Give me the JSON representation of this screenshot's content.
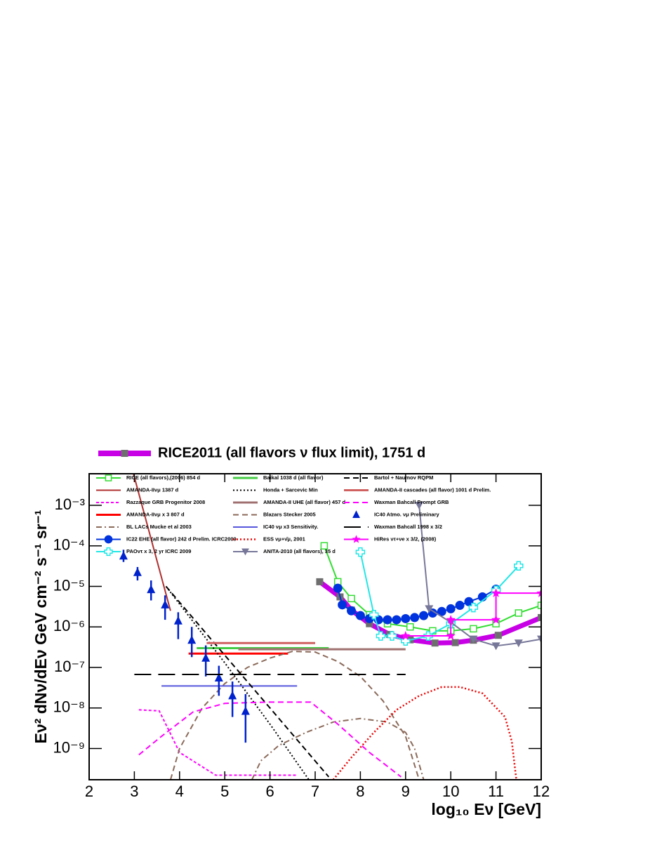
{
  "chart_data": {
    "type": "line",
    "yscale": "log",
    "xlabel": "log₁₀ Eν [GeV]",
    "ylabel": "Eν² dNν/dEν GeV cm⁻² s⁻¹ sr⁻¹",
    "xlim": [
      2,
      12
    ],
    "xticks": [
      2,
      3,
      4,
      5,
      6,
      7,
      8,
      9,
      10,
      11,
      12
    ],
    "ylim": [
      1.7e-10,
      0.006
    ],
    "yticks": [
      {
        "value": 1e-09,
        "label": "10⁻⁹"
      },
      {
        "value": 1e-08,
        "label": "10⁻⁸"
      },
      {
        "value": 1e-07,
        "label": "10⁻⁷"
      },
      {
        "value": 1e-06,
        "label": "10⁻⁶"
      },
      {
        "value": 1e-05,
        "label": "10⁻⁵"
      },
      {
        "value": 0.0001,
        "label": "10⁻⁴"
      },
      {
        "value": 0.001,
        "label": "10⁻³"
      }
    ],
    "series": [
      {
        "name": "RICE2011 (all flavors ν flux limit), 1751 d",
        "color": "#c800e6",
        "dash": "solid",
        "width": 7,
        "marker": "square",
        "marker_color": "#6e6e6e",
        "x": [
          7.1,
          7.55,
          7.8,
          8.2,
          8.65,
          9.1,
          9.65,
          10.1,
          10.5,
          11.05,
          12.0
        ],
        "values": [
          1.3e-05,
          5.5e-06,
          2.6e-06,
          1.2e-06,
          6.5e-07,
          4.8e-07,
          4e-07,
          4.1e-07,
          4.7e-07,
          6.2e-07,
          1.7e-06
        ]
      },
      {
        "name": "RICE (all flavors),(2006) 854 d",
        "color": "#33dd33",
        "dash": "solid",
        "width": 2,
        "marker": "square-open",
        "x": [
          7.2,
          7.5,
          7.8,
          8.2,
          8.6,
          9.1,
          9.6,
          10.0,
          10.5,
          11.0,
          11.5,
          12.0
        ],
        "values": [
          0.0001,
          1.3e-05,
          5e-06,
          2e-06,
          1.2e-06,
          1e-06,
          8e-07,
          8e-07,
          9e-07,
          1.2e-06,
          2.2e-06,
          3.4e-06
        ]
      },
      {
        "name": "AMANDA-IIνμ 1387 d",
        "color": "#b03030",
        "dash": "solid",
        "width": 2,
        "marker": "none",
        "x": [
          2.98,
          3.8
        ],
        "values": [
          0.006,
          2.5e-06
        ]
      },
      {
        "name": "Razzaque GRB Progenitor 2008",
        "color": "#ff00ff",
        "dash": "shortdash",
        "width": 2,
        "marker": "none",
        "x": [
          3.1,
          3.55,
          3.75,
          4.0,
          4.8,
          6.6
        ],
        "values": [
          9e-09,
          8.5e-09,
          3e-09,
          8e-10,
          2.2e-10,
          2.2e-10
        ]
      },
      {
        "name": "AMANDA-IIνμ x 3 807 d",
        "color": "#ff0000",
        "dash": "solid",
        "width": 3,
        "marker": "none",
        "x": [
          4.2,
          6.4
        ],
        "values": [
          2.2e-07,
          2.2e-07
        ]
      },
      {
        "name": "BL LACs Mucke et al 2003",
        "color": "#8b6a5a",
        "dash": "dashdot",
        "width": 2,
        "marker": "none",
        "x": [
          5.6,
          5.8,
          6.2,
          6.8,
          7.4,
          8.0,
          8.6,
          9.0,
          9.2,
          9.4
        ],
        "values": [
          1.7e-10,
          5e-10,
          1.2e-09,
          2.5e-09,
          4.5e-09,
          5.5e-09,
          4.5e-09,
          2.5e-09,
          1e-09,
          1.7e-10
        ]
      },
      {
        "name": "IC22 EHE (all flavor) 242 d Prelim. ICRC2009",
        "color": "#0033dd",
        "dash": "solid",
        "width": 2,
        "marker": "circle",
        "x": [
          7.5,
          7.6,
          7.8,
          8.0,
          8.2,
          8.4,
          8.6,
          8.8,
          9.0,
          9.2,
          9.4,
          9.6,
          9.8,
          10.0,
          10.2,
          10.4,
          10.7,
          11.0
        ],
        "values": [
          9e-06,
          3.5e-06,
          2.5e-06,
          1.9e-06,
          1.6e-06,
          1.5e-06,
          1.5e-06,
          1.5e-06,
          1.6e-06,
          1.7e-06,
          1.9e-06,
          2.2e-06,
          2.4e-06,
          2.8e-06,
          3.4e-06,
          4.2e-06,
          5.5e-06,
          8.5e-06
        ]
      },
      {
        "name": "PAOντ x 3, 2 yr ICRC 2009",
        "color": "#22e6e6",
        "dash": "solid",
        "width": 2,
        "marker": "cross-open",
        "x": [
          8.0,
          8.3,
          8.45,
          8.7,
          9.0,
          9.5,
          10.0,
          10.5,
          11.0,
          11.5
        ],
        "values": [
          7e-05,
          2e-06,
          6e-07,
          6e-07,
          4.5e-07,
          6e-07,
          1.2e-06,
          3e-06,
          8e-06,
          3.2e-05
        ]
      },
      {
        "name": "Baikal 1038 d (all flavor)",
        "color": "#44cc44",
        "dash": "solid",
        "width": 3,
        "marker": "none",
        "x": [
          4.38,
          7.3
        ],
        "values": [
          3e-07,
          3e-07
        ]
      },
      {
        "name": "Honda + Sarcevic Min",
        "color": "#000000",
        "dash": "dotted",
        "width": 2,
        "marker": "none",
        "x": [
          3.7,
          5.0,
          6.0,
          6.86
        ],
        "values": [
          1e-05,
          1.3e-07,
          4e-09,
          1.7e-10
        ]
      },
      {
        "name": "AMANDA-II UHE (all flavor) 457 d",
        "color": "#a07070",
        "dash": "solid",
        "width": 3,
        "marker": "none",
        "x": [
          5.3,
          9.0
        ],
        "values": [
          2.8e-07,
          2.8e-07
        ]
      },
      {
        "name": "Blazars Stecker 2005",
        "color": "#8b6a5a",
        "dash": "dashed",
        "width": 2,
        "marker": "none",
        "x": [
          3.8,
          4.0,
          4.5,
          5.0,
          5.5,
          6.0,
          6.5,
          7.0,
          7.5,
          8.0,
          8.5,
          9.0,
          9.3
        ],
        "values": [
          1.7e-10,
          1e-09,
          1e-08,
          4e-08,
          1e-07,
          1.7e-07,
          2.5e-07,
          2.4e-07,
          1.4e-07,
          6e-08,
          1.5e-08,
          2e-09,
          1.7e-10
        ]
      },
      {
        "name": "IC40 νμ x3 Sensitivity.",
        "color": "#5555dd",
        "dash": "solid",
        "width": 2,
        "marker": "none",
        "x": [
          3.6,
          6.6
        ],
        "values": [
          3.5e-08,
          3.5e-08
        ]
      },
      {
        "name": "ESS νμ+ν̄μ, 2001",
        "color": "#ee0000",
        "dash": "dotted",
        "width": 2.5,
        "marker": "none",
        "x": [
          7.4,
          7.8,
          8.3,
          8.8,
          9.3,
          9.8,
          10.2,
          10.7,
          11.2,
          11.35,
          11.45
        ],
        "values": [
          1.7e-10,
          6e-10,
          2.5e-09,
          9e-09,
          2e-08,
          3.3e-08,
          3.3e-08,
          2.3e-08,
          6e-09,
          1.5e-09,
          1.7e-10
        ]
      },
      {
        "name": "ANITA-2010 (all flavors), 35 d",
        "color": "#777799",
        "dash": "solid",
        "width": 2,
        "marker": "triangle-down",
        "x": [
          9.3,
          9.52,
          10.0,
          10.5,
          11.0,
          11.5,
          12.0
        ],
        "values": [
          0.001,
          2.8e-06,
          1.3e-06,
          5e-07,
          3.4e-07,
          4e-07,
          5e-07
        ]
      },
      {
        "name": "Bartol + Naumov RQPM",
        "color": "#000000",
        "dash": "dashed",
        "width": 2,
        "marker": "none",
        "x": [
          3.7,
          5.0,
          6.0,
          7.3
        ],
        "values": [
          1e-05,
          2e-07,
          1e-08,
          2e-10
        ]
      },
      {
        "name": "AMANDA-II cascades (all flavor) 1001 d Prelim.",
        "color": "#d06060",
        "dash": "solid",
        "width": 3,
        "marker": "none",
        "x": [
          4.6,
          7.0
        ],
        "values": [
          4e-07,
          4e-07
        ]
      },
      {
        "name": "Waxman Bahcall Prompt GRB",
        "color": "#ff00ff",
        "dash": "dashed",
        "width": 2,
        "marker": "none",
        "x": [
          3.1,
          3.6,
          4.3,
          5.0,
          6.0,
          6.9,
          7.5,
          8.2,
          8.9
        ],
        "values": [
          7e-10,
          2e-09,
          8e-09,
          1.3e-08,
          1.4e-08,
          1.4e-08,
          4e-09,
          8e-10,
          2e-10
        ]
      },
      {
        "name": "IC40 Atmo. νμ Preliminary",
        "color": "#0022cc",
        "line": false,
        "marker": "triangle",
        "x": [
          2.76,
          3.07,
          3.37,
          3.68,
          3.97,
          4.27,
          4.58,
          4.87,
          5.17,
          5.46
        ],
        "values": [
          5.6e-05,
          2.2e-05,
          8.3e-06,
          3.5e-06,
          1.4e-06,
          4.7e-07,
          1.7e-07,
          5.5e-08,
          2e-08,
          8.3e-09
        ],
        "ylow": [
          4e-05,
          1.4e-05,
          4.5e-06,
          1.5e-06,
          5e-07,
          1.8e-07,
          6e-08,
          2e-08,
          6e-09,
          1.4e-09
        ],
        "yhigh": [
          8e-05,
          3e-05,
          1.4e-05,
          6e-06,
          2.3e-06,
          1e-06,
          3.5e-07,
          1.1e-07,
          4.5e-08,
          2.2e-08
        ]
      },
      {
        "name": "Waxman Bahcall 1998 x 3/2",
        "color": "#000000",
        "dash": "longdash",
        "width": 2,
        "marker": "none",
        "x": [
          3.0,
          9.0
        ],
        "values": [
          6.7e-08,
          6.7e-08
        ]
      },
      {
        "name": "HiRes ντ+νe x 3/2, (2008)",
        "color": "#ff00ff",
        "dash": "solid",
        "width": 2,
        "marker": "star",
        "x": [
          9.0,
          10.0,
          10.0,
          11.0,
          11.0,
          12.0
        ],
        "values": [
          6e-07,
          6e-07,
          1.5e-06,
          1.5e-06,
          6.8e-06,
          6.8e-06
        ]
      }
    ]
  }
}
